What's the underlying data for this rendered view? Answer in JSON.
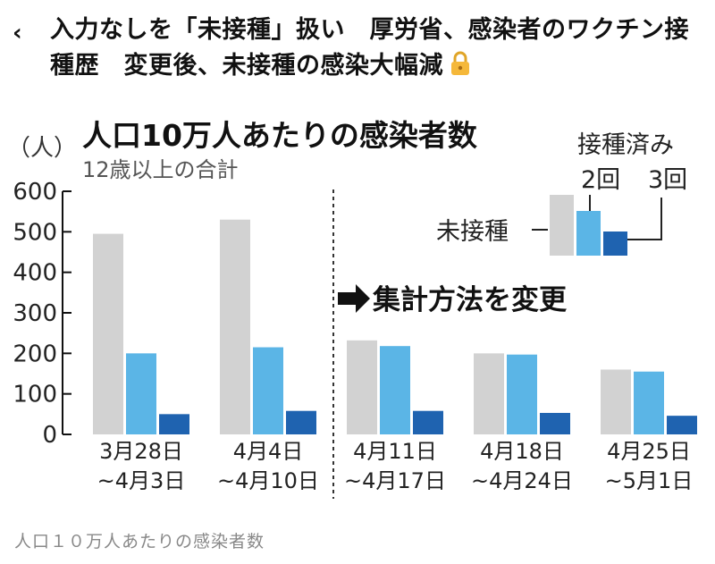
{
  "header": {
    "back_icon": "chevron-left-icon",
    "title": "入力なしを「未接種」扱い　厚労省、感染者のワクチン接種歴　変更後、未接種の感染大幅減",
    "lock_icon": "lock-icon"
  },
  "chart_data": {
    "type": "bar",
    "title": "人口10万人あたりの感染者数",
    "subtitle": "12歳以上の合計",
    "ylabel": "（人）",
    "ylim": [
      0,
      600
    ],
    "yticks": [
      0,
      100,
      200,
      300,
      400,
      500,
      600
    ],
    "categories": [
      [
        "3月28日",
        "~4月3日"
      ],
      [
        "4月4日",
        "~4月10日"
      ],
      [
        "4月11日",
        "~4月17日"
      ],
      [
        "4月18日",
        "~4月24日"
      ],
      [
        "4月25日",
        "~5月1日"
      ]
    ],
    "series": [
      {
        "name": "未接種",
        "color": "#d2d2d2",
        "values": [
          495,
          530,
          232,
          200,
          160
        ]
      },
      {
        "name": "2回",
        "color": "#5bb5e6",
        "values": [
          200,
          215,
          218,
          197,
          155
        ]
      },
      {
        "name": "3回",
        "color": "#1f63b0",
        "values": [
          50,
          58,
          58,
          53,
          46
        ]
      }
    ],
    "legend_header": "接種済み",
    "annotation": "集計方法を変更",
    "grid": false,
    "legend_position": "top-right"
  },
  "caption": "人口１０万人あたりの感染者数"
}
